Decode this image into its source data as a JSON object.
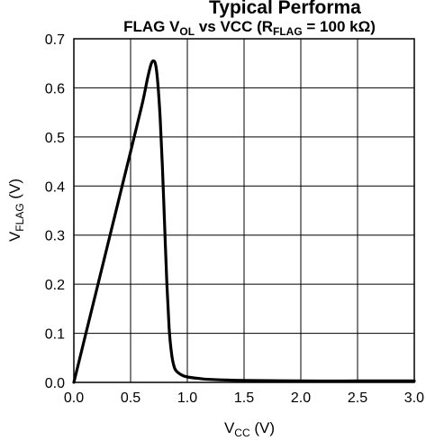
{
  "header": {
    "cut_off_text": "Typical Performa"
  },
  "chart_data": {
    "type": "line",
    "title": {
      "prefix": "FLAG V",
      "sub1": "OL",
      "middle": " vs VCC (R",
      "sub2": "FLAG",
      "suffix": " = 100 kΩ)"
    },
    "xlabel": {
      "main": "V",
      "sub": "CC",
      "unit": " (V)"
    },
    "ylabel": {
      "main": "V",
      "sub": "FLAG",
      "unit": " (V)"
    },
    "xlim": [
      0,
      3.0
    ],
    "ylim": [
      0,
      0.7
    ],
    "x_ticks": [
      0.0,
      0.5,
      1.0,
      1.5,
      2.0,
      2.5,
      3.0
    ],
    "x_tick_labels": [
      "0.0",
      "0.5",
      "1.0",
      "1.5",
      "2.0",
      "2.5",
      "3.0"
    ],
    "y_ticks": [
      0.0,
      0.1,
      0.2,
      0.3,
      0.4,
      0.5,
      0.6,
      0.7
    ],
    "y_tick_labels": [
      "0.0",
      "0.1",
      "0.2",
      "0.3",
      "0.4",
      "0.5",
      "0.6",
      "0.7"
    ],
    "grid": true,
    "series": [
      {
        "color": "#000000",
        "x": [
          0.0,
          0.1,
          0.2,
          0.3,
          0.4,
          0.5,
          0.6,
          0.65,
          0.68,
          0.7,
          0.72,
          0.74,
          0.76,
          0.78,
          0.8,
          0.82,
          0.84,
          0.86,
          0.88,
          0.9,
          0.95,
          1.0,
          1.1,
          1.2,
          1.5,
          2.0,
          2.5,
          3.0
        ],
        "y": [
          0.0,
          0.094,
          0.188,
          0.282,
          0.376,
          0.47,
          0.565,
          0.62,
          0.648,
          0.655,
          0.648,
          0.61,
          0.54,
          0.44,
          0.32,
          0.2,
          0.11,
          0.06,
          0.035,
          0.024,
          0.015,
          0.011,
          0.008,
          0.006,
          0.004,
          0.003,
          0.003,
          0.003
        ]
      }
    ]
  }
}
